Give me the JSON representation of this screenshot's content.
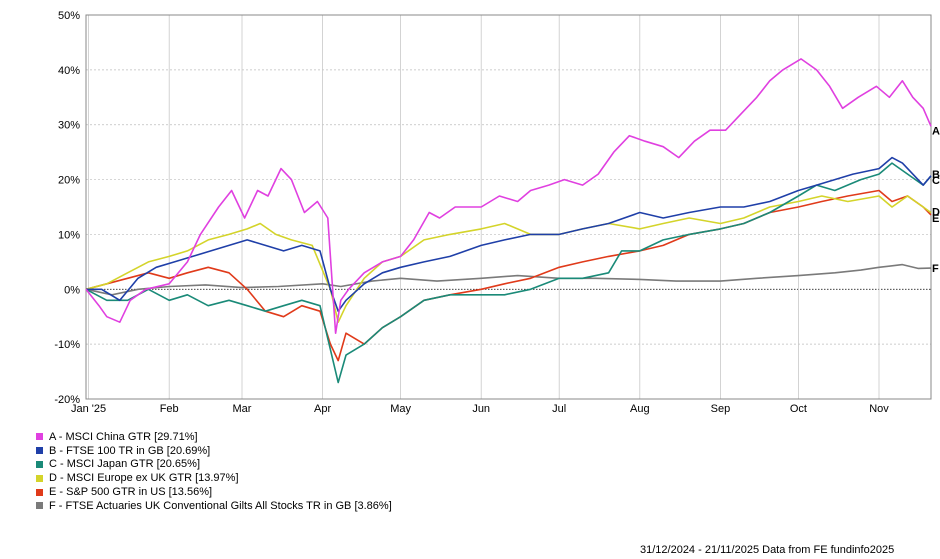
{
  "chart_data": {
    "type": "line",
    "title": "",
    "xlabel": "",
    "ylabel": "",
    "x_range": [
      "2024-12-31",
      "2025-11-21"
    ],
    "ylim": [
      -20,
      50
    ],
    "y_ticks": [
      "50%",
      "40%",
      "30%",
      "20%",
      "10%",
      "0%",
      "-10%",
      "-20%"
    ],
    "x_ticks": [
      {
        "label": "Jan '25",
        "date": "2025-01-01"
      },
      {
        "label": "Feb",
        "date": "2025-02-01"
      },
      {
        "label": "Mar",
        "date": "2025-03-01"
      },
      {
        "label": "Apr",
        "date": "2025-04-01"
      },
      {
        "label": "May",
        "date": "2025-05-01"
      },
      {
        "label": "Jun",
        "date": "2025-06-01"
      },
      {
        "label": "Jul",
        "date": "2025-07-01"
      },
      {
        "label": "Aug",
        "date": "2025-08-01"
      },
      {
        "label": "Sep",
        "date": "2025-09-01"
      },
      {
        "label": "Oct",
        "date": "2025-10-01"
      },
      {
        "label": "Nov",
        "date": "2025-11-01"
      }
    ],
    "grid": true,
    "legend_position": "bottom-left",
    "series": [
      {
        "name": "A - MSCI China GTR [29.71%]",
        "end_label": "A",
        "color": "#e040e0",
        "points": [
          [
            "2024-12-31",
            0
          ],
          [
            "2025-01-05",
            -3
          ],
          [
            "2025-01-08",
            -5
          ],
          [
            "2025-01-13",
            -6
          ],
          [
            "2025-01-17",
            -2
          ],
          [
            "2025-01-23",
            0
          ],
          [
            "2025-02-01",
            1
          ],
          [
            "2025-02-08",
            5
          ],
          [
            "2025-02-13",
            10
          ],
          [
            "2025-02-20",
            15
          ],
          [
            "2025-02-25",
            18
          ],
          [
            "2025-03-02",
            13
          ],
          [
            "2025-03-07",
            18
          ],
          [
            "2025-03-11",
            17
          ],
          [
            "2025-03-16",
            22
          ],
          [
            "2025-03-20",
            20
          ],
          [
            "2025-03-25",
            14
          ],
          [
            "2025-03-30",
            16
          ],
          [
            "2025-04-03",
            13
          ],
          [
            "2025-04-06",
            -8
          ],
          [
            "2025-04-08",
            -2
          ],
          [
            "2025-04-11",
            0
          ],
          [
            "2025-04-17",
            3
          ],
          [
            "2025-04-24",
            5
          ],
          [
            "2025-05-01",
            6
          ],
          [
            "2025-05-06",
            9
          ],
          [
            "2025-05-12",
            14
          ],
          [
            "2025-05-16",
            13
          ],
          [
            "2025-05-22",
            15
          ],
          [
            "2025-06-01",
            15
          ],
          [
            "2025-06-08",
            17
          ],
          [
            "2025-06-15",
            16
          ],
          [
            "2025-06-20",
            18
          ],
          [
            "2025-06-27",
            19
          ],
          [
            "2025-07-03",
            20
          ],
          [
            "2025-07-10",
            19
          ],
          [
            "2025-07-16",
            21
          ],
          [
            "2025-07-22",
            25
          ],
          [
            "2025-07-28",
            28
          ],
          [
            "2025-08-03",
            27
          ],
          [
            "2025-08-10",
            26
          ],
          [
            "2025-08-16",
            24
          ],
          [
            "2025-08-22",
            27
          ],
          [
            "2025-08-28",
            29
          ],
          [
            "2025-09-03",
            29
          ],
          [
            "2025-09-09",
            32
          ],
          [
            "2025-09-15",
            35
          ],
          [
            "2025-09-20",
            38
          ],
          [
            "2025-09-25",
            40
          ],
          [
            "2025-10-02",
            42
          ],
          [
            "2025-10-08",
            40
          ],
          [
            "2025-10-13",
            37
          ],
          [
            "2025-10-18",
            33
          ],
          [
            "2025-10-24",
            35
          ],
          [
            "2025-10-31",
            37
          ],
          [
            "2025-11-05",
            35
          ],
          [
            "2025-11-10",
            38
          ],
          [
            "2025-11-14",
            35
          ],
          [
            "2025-11-18",
            33
          ],
          [
            "2025-11-21",
            29.71
          ]
        ]
      },
      {
        "name": "B - FTSE 100 TR in GB [20.69%]",
        "end_label": "B",
        "color": "#1f3fa8",
        "points": [
          [
            "2024-12-31",
            0
          ],
          [
            "2025-01-06",
            0
          ],
          [
            "2025-01-13",
            -2
          ],
          [
            "2025-01-20",
            2
          ],
          [
            "2025-01-27",
            4
          ],
          [
            "2025-02-03",
            5
          ],
          [
            "2025-02-10",
            6
          ],
          [
            "2025-02-17",
            7
          ],
          [
            "2025-02-24",
            8
          ],
          [
            "2025-03-03",
            9
          ],
          [
            "2025-03-10",
            8
          ],
          [
            "2025-03-17",
            7
          ],
          [
            "2025-03-24",
            8
          ],
          [
            "2025-03-31",
            7
          ],
          [
            "2025-04-04",
            0
          ],
          [
            "2025-04-07",
            -4
          ],
          [
            "2025-04-10",
            -2
          ],
          [
            "2025-04-17",
            1
          ],
          [
            "2025-04-24",
            3
          ],
          [
            "2025-05-01",
            4
          ],
          [
            "2025-05-10",
            5
          ],
          [
            "2025-05-20",
            6
          ],
          [
            "2025-06-01",
            8
          ],
          [
            "2025-06-10",
            9
          ],
          [
            "2025-06-20",
            10
          ],
          [
            "2025-07-01",
            10
          ],
          [
            "2025-07-10",
            11
          ],
          [
            "2025-07-20",
            12
          ],
          [
            "2025-08-01",
            14
          ],
          [
            "2025-08-10",
            13
          ],
          [
            "2025-08-20",
            14
          ],
          [
            "2025-09-01",
            15
          ],
          [
            "2025-09-10",
            15
          ],
          [
            "2025-09-20",
            16
          ],
          [
            "2025-10-01",
            18
          ],
          [
            "2025-10-08",
            19
          ],
          [
            "2025-10-15",
            20
          ],
          [
            "2025-10-22",
            21
          ],
          [
            "2025-11-01",
            22
          ],
          [
            "2025-11-06",
            24
          ],
          [
            "2025-11-10",
            23
          ],
          [
            "2025-11-14",
            21
          ],
          [
            "2025-11-18",
            19
          ],
          [
            "2025-11-21",
            20.69
          ]
        ]
      },
      {
        "name": "C - MSCI Japan GTR [20.65%]",
        "end_label": "C",
        "color": "#1a8a78",
        "points": [
          [
            "2024-12-31",
            0
          ],
          [
            "2025-01-08",
            -2
          ],
          [
            "2025-01-16",
            -2
          ],
          [
            "2025-01-24",
            0
          ],
          [
            "2025-02-01",
            -2
          ],
          [
            "2025-02-08",
            -1
          ],
          [
            "2025-02-16",
            -3
          ],
          [
            "2025-02-24",
            -2
          ],
          [
            "2025-03-03",
            -3
          ],
          [
            "2025-03-10",
            -4
          ],
          [
            "2025-03-17",
            -3
          ],
          [
            "2025-03-24",
            -2
          ],
          [
            "2025-03-31",
            -3
          ],
          [
            "2025-04-04",
            -11
          ],
          [
            "2025-04-07",
            -17
          ],
          [
            "2025-04-10",
            -12
          ],
          [
            "2025-04-17",
            -10
          ],
          [
            "2025-04-24",
            -7
          ],
          [
            "2025-05-01",
            -5
          ],
          [
            "2025-05-10",
            -2
          ],
          [
            "2025-05-20",
            -1
          ],
          [
            "2025-06-01",
            -1
          ],
          [
            "2025-06-10",
            -1
          ],
          [
            "2025-06-20",
            0
          ],
          [
            "2025-07-01",
            2
          ],
          [
            "2025-07-10",
            2
          ],
          [
            "2025-07-20",
            3
          ],
          [
            "2025-07-25",
            7
          ],
          [
            "2025-08-01",
            7
          ],
          [
            "2025-08-10",
            9
          ],
          [
            "2025-08-20",
            10
          ],
          [
            "2025-09-01",
            11
          ],
          [
            "2025-09-10",
            12
          ],
          [
            "2025-09-20",
            14
          ],
          [
            "2025-10-01",
            17
          ],
          [
            "2025-10-08",
            19
          ],
          [
            "2025-10-15",
            18
          ],
          [
            "2025-10-25",
            20
          ],
          [
            "2025-11-01",
            21
          ],
          [
            "2025-11-06",
            23
          ],
          [
            "2025-11-12",
            21
          ],
          [
            "2025-11-18",
            19
          ],
          [
            "2025-11-21",
            20.65
          ]
        ]
      },
      {
        "name": "D - MSCI Europe ex UK GTR [13.97%]",
        "end_label": "D",
        "color": "#d4d42a",
        "points": [
          [
            "2024-12-31",
            0
          ],
          [
            "2025-01-08",
            1
          ],
          [
            "2025-01-16",
            3
          ],
          [
            "2025-01-24",
            5
          ],
          [
            "2025-02-01",
            6
          ],
          [
            "2025-02-08",
            7
          ],
          [
            "2025-02-16",
            9
          ],
          [
            "2025-02-24",
            10
          ],
          [
            "2025-03-03",
            11
          ],
          [
            "2025-03-08",
            12
          ],
          [
            "2025-03-14",
            10
          ],
          [
            "2025-03-20",
            9
          ],
          [
            "2025-03-28",
            8
          ],
          [
            "2025-04-04",
            0
          ],
          [
            "2025-04-07",
            -6
          ],
          [
            "2025-04-10",
            -3
          ],
          [
            "2025-04-17",
            2
          ],
          [
            "2025-04-24",
            5
          ],
          [
            "2025-05-01",
            6
          ],
          [
            "2025-05-10",
            9
          ],
          [
            "2025-05-20",
            10
          ],
          [
            "2025-06-01",
            11
          ],
          [
            "2025-06-10",
            12
          ],
          [
            "2025-06-20",
            10
          ],
          [
            "2025-07-01",
            10
          ],
          [
            "2025-07-10",
            11
          ],
          [
            "2025-07-20",
            12
          ],
          [
            "2025-08-01",
            11
          ],
          [
            "2025-08-10",
            12
          ],
          [
            "2025-08-20",
            13
          ],
          [
            "2025-09-01",
            12
          ],
          [
            "2025-09-10",
            13
          ],
          [
            "2025-09-20",
            15
          ],
          [
            "2025-10-01",
            16
          ],
          [
            "2025-10-10",
            17
          ],
          [
            "2025-10-20",
            16
          ],
          [
            "2025-11-01",
            17
          ],
          [
            "2025-11-06",
            15
          ],
          [
            "2025-11-12",
            17
          ],
          [
            "2025-11-18",
            15
          ],
          [
            "2025-11-21",
            13.97
          ]
        ]
      },
      {
        "name": "E - S&P 500 GTR in US [13.56%]",
        "end_label": "E",
        "color": "#e03a1a",
        "points": [
          [
            "2024-12-31",
            0
          ],
          [
            "2025-01-08",
            1
          ],
          [
            "2025-01-16",
            2
          ],
          [
            "2025-01-24",
            3
          ],
          [
            "2025-02-01",
            2
          ],
          [
            "2025-02-08",
            3
          ],
          [
            "2025-02-16",
            4
          ],
          [
            "2025-02-24",
            3
          ],
          [
            "2025-03-03",
            0
          ],
          [
            "2025-03-10",
            -4
          ],
          [
            "2025-03-17",
            -5
          ],
          [
            "2025-03-24",
            -3
          ],
          [
            "2025-03-31",
            -4
          ],
          [
            "2025-04-04",
            -10
          ],
          [
            "2025-04-07",
            -13
          ],
          [
            "2025-04-10",
            -8
          ],
          [
            "2025-04-17",
            -10
          ],
          [
            "2025-04-24",
            -7
          ],
          [
            "2025-05-01",
            -5
          ],
          [
            "2025-05-10",
            -2
          ],
          [
            "2025-05-20",
            -1
          ],
          [
            "2025-06-01",
            0
          ],
          [
            "2025-06-10",
            1
          ],
          [
            "2025-06-20",
            2
          ],
          [
            "2025-07-01",
            4
          ],
          [
            "2025-07-10",
            5
          ],
          [
            "2025-07-20",
            6
          ],
          [
            "2025-08-01",
            7
          ],
          [
            "2025-08-10",
            8
          ],
          [
            "2025-08-20",
            10
          ],
          [
            "2025-09-01",
            11
          ],
          [
            "2025-09-10",
            12
          ],
          [
            "2025-09-20",
            14
          ],
          [
            "2025-10-01",
            15
          ],
          [
            "2025-10-10",
            16
          ],
          [
            "2025-10-20",
            17
          ],
          [
            "2025-11-01",
            18
          ],
          [
            "2025-11-06",
            16
          ],
          [
            "2025-11-12",
            17
          ],
          [
            "2025-11-18",
            15
          ],
          [
            "2025-11-21",
            13.56
          ]
        ]
      },
      {
        "name": "F - FTSE Actuaries UK Conventional Gilts All Stocks TR in GB [3.86%]",
        "end_label": "F",
        "color": "#7a7a7a",
        "points": [
          [
            "2024-12-31",
            0
          ],
          [
            "2025-01-10",
            -1
          ],
          [
            "2025-01-20",
            0
          ],
          [
            "2025-02-01",
            0.5
          ],
          [
            "2025-02-15",
            0.8
          ],
          [
            "2025-03-01",
            0.3
          ],
          [
            "2025-03-15",
            0.5
          ],
          [
            "2025-04-01",
            1
          ],
          [
            "2025-04-08",
            0.5
          ],
          [
            "2025-04-20",
            1.5
          ],
          [
            "2025-05-01",
            2
          ],
          [
            "2025-05-15",
            1.5
          ],
          [
            "2025-06-01",
            2
          ],
          [
            "2025-06-15",
            2.5
          ],
          [
            "2025-07-01",
            2
          ],
          [
            "2025-07-15",
            2
          ],
          [
            "2025-08-01",
            1.8
          ],
          [
            "2025-08-15",
            1.5
          ],
          [
            "2025-09-01",
            1.5
          ],
          [
            "2025-09-15",
            2
          ],
          [
            "2025-10-01",
            2.5
          ],
          [
            "2025-10-15",
            3
          ],
          [
            "2025-10-25",
            3.5
          ],
          [
            "2025-11-01",
            4
          ],
          [
            "2025-11-10",
            4.5
          ],
          [
            "2025-11-16",
            3.8
          ],
          [
            "2025-11-21",
            3.86
          ]
        ]
      }
    ]
  },
  "footer": "31/12/2024 - 21/11/2025 Data from FE fundinfo2025"
}
